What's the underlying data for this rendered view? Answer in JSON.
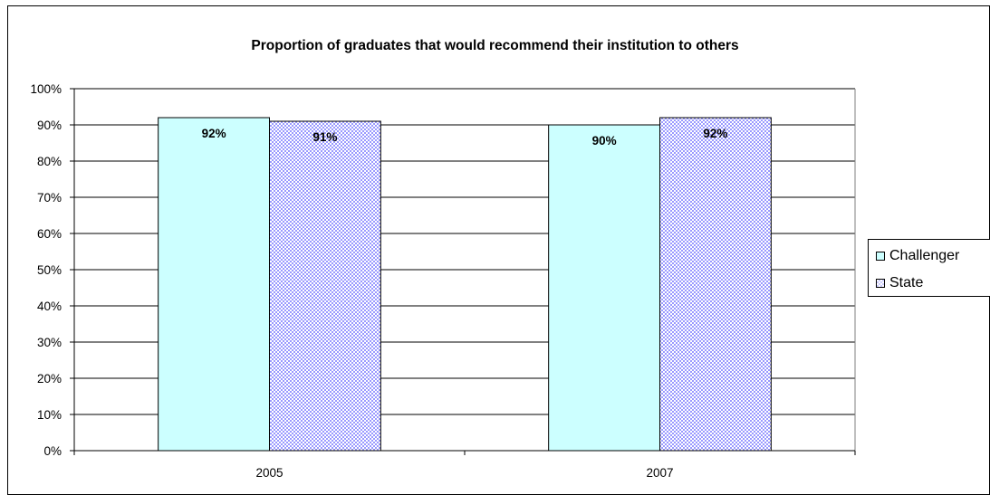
{
  "chart_data": {
    "type": "bar",
    "title": "Proportion of graduates that would recommend their institution to others",
    "categories": [
      "2005",
      "2007"
    ],
    "series": [
      {
        "name": "Challenger",
        "values": [
          92,
          90
        ],
        "labels": [
          "92%",
          "90%"
        ],
        "color": "#ccffff"
      },
      {
        "name": "State",
        "values": [
          91,
          92
        ],
        "labels": [
          "91%",
          "92%"
        ],
        "color": "#ccccff"
      }
    ],
    "ylim": [
      0,
      100
    ],
    "yticks": [
      "0%",
      "10%",
      "20%",
      "30%",
      "40%",
      "50%",
      "60%",
      "70%",
      "80%",
      "90%",
      "100%"
    ],
    "grid": true,
    "legend_position": "right"
  }
}
